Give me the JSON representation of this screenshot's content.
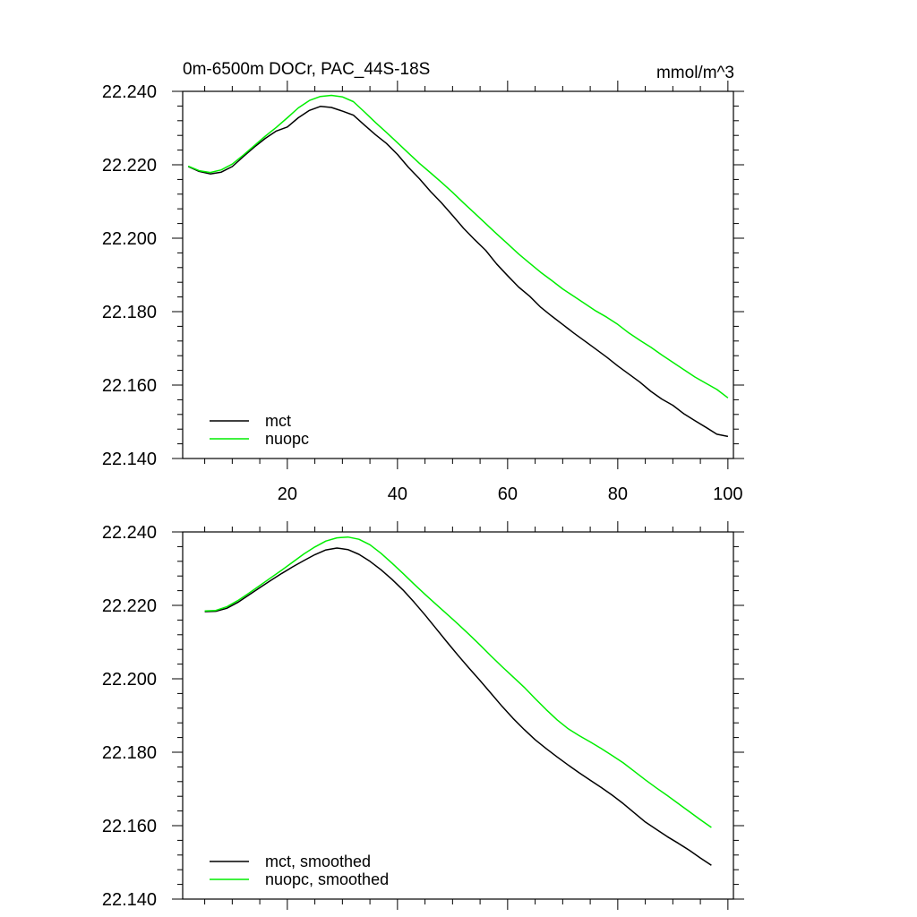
{
  "chart_data": [
    {
      "type": "line",
      "title_left": "0m-6500m DOCr, PAC_44S-18S",
      "title_right": "mmol/m^3",
      "xlim": [
        1,
        101
      ],
      "ylim": [
        22.14,
        22.24
      ],
      "x_ticks": [
        20,
        40,
        60,
        80,
        100
      ],
      "x_tick_labels": [
        "20",
        "40",
        "60",
        "80",
        "100"
      ],
      "y_ticks": [
        22.14,
        22.16,
        22.18,
        22.2,
        22.22,
        22.24
      ],
      "y_tick_labels": [
        "22.140",
        "22.160",
        "22.180",
        "22.200",
        "22.220",
        "22.240"
      ],
      "legend_position": "bottom-left",
      "series": [
        {
          "name": "mct",
          "color": "#000000",
          "x": [
            2,
            4,
            6,
            8,
            10,
            12,
            14,
            16,
            18,
            20,
            22,
            24,
            26,
            28,
            30,
            32,
            34,
            36,
            38,
            40,
            42,
            44,
            46,
            48,
            50,
            52,
            54,
            56,
            58,
            60,
            62,
            64,
            66,
            68,
            70,
            72,
            74,
            76,
            78,
            80,
            82,
            84,
            86,
            88,
            90,
            92,
            94,
            96,
            98,
            100
          ],
          "y": [
            22.2195,
            22.2182,
            22.2175,
            22.218,
            22.2195,
            22.2222,
            22.2248,
            22.2272,
            22.2292,
            22.2303,
            22.2328,
            22.2348,
            22.2359,
            22.2356,
            22.2346,
            22.2335,
            22.2308,
            22.2282,
            22.2258,
            22.2228,
            22.2193,
            22.2162,
            22.2127,
            22.2096,
            22.2062,
            22.2027,
            22.1996,
            22.1967,
            22.193,
            22.1898,
            22.1867,
            22.1842,
            22.1812,
            22.1788,
            22.1765,
            22.1742,
            22.172,
            22.1698,
            22.1676,
            22.1652,
            22.163,
            22.1608,
            22.1583,
            22.1562,
            22.1545,
            22.1522,
            22.1503,
            22.1485,
            22.1466,
            22.146
          ]
        },
        {
          "name": "nuopc",
          "color": "#00ee00",
          "x": [
            2,
            4,
            6,
            8,
            10,
            12,
            14,
            16,
            18,
            20,
            22,
            24,
            26,
            28,
            30,
            32,
            34,
            36,
            38,
            40,
            42,
            44,
            46,
            48,
            50,
            52,
            54,
            56,
            58,
            60,
            62,
            64,
            66,
            68,
            70,
            72,
            74,
            76,
            78,
            80,
            82,
            84,
            86,
            88,
            90,
            92,
            94,
            96,
            98,
            100
          ],
          "y": [
            22.2196,
            22.2184,
            22.2179,
            22.2186,
            22.2202,
            22.2226,
            22.2252,
            22.2278,
            22.2302,
            22.2328,
            22.2355,
            22.2375,
            22.2386,
            22.2389,
            22.2385,
            22.2372,
            22.2344,
            22.2315,
            22.2288,
            22.226,
            22.2232,
            22.2204,
            22.2178,
            22.2152,
            22.2125,
            22.2096,
            22.2068,
            22.204,
            22.2012,
            22.1985,
            22.1957,
            22.1932,
            22.1907,
            22.1885,
            22.1862,
            22.1842,
            22.1822,
            22.1802,
            22.1785,
            22.1765,
            22.1742,
            22.1722,
            22.1703,
            22.1682,
            22.1662,
            22.1642,
            22.1622,
            22.1605,
            22.1588,
            22.1565
          ]
        }
      ]
    },
    {
      "type": "line",
      "xlim": [
        1,
        101
      ],
      "ylim": [
        22.14,
        22.24
      ],
      "x_ticks": [
        20,
        40,
        60,
        80,
        100
      ],
      "y_ticks": [
        22.14,
        22.16,
        22.18,
        22.2,
        22.22,
        22.24
      ],
      "y_tick_labels": [
        "22.140",
        "22.160",
        "22.180",
        "22.200",
        "22.220",
        "22.240"
      ],
      "legend_position": "bottom-left",
      "series": [
        {
          "name": "mct, smoothed",
          "color": "#000000",
          "x": [
            5,
            7,
            9,
            11,
            13,
            15,
            17,
            19,
            21,
            23,
            25,
            27,
            29,
            31,
            33,
            35,
            37,
            39,
            41,
            43,
            45,
            47,
            49,
            51,
            53,
            55,
            57,
            59,
            61,
            63,
            65,
            67,
            69,
            71,
            73,
            75,
            77,
            79,
            81,
            83,
            85,
            87,
            89,
            91,
            93,
            95,
            97
          ],
          "y": [
            22.2183,
            22.2184,
            22.2192,
            22.2208,
            22.2228,
            22.2248,
            22.2268,
            22.2287,
            22.2305,
            22.2322,
            22.2338,
            22.2351,
            22.2356,
            22.2352,
            22.2339,
            22.232,
            22.2297,
            22.2271,
            22.2242,
            22.2209,
            22.2174,
            22.2137,
            22.21,
            22.2064,
            22.2029,
            22.1995,
            22.196,
            22.1925,
            22.1892,
            22.1862,
            22.1834,
            22.181,
            22.1787,
            22.1765,
            22.1744,
            22.1724,
            22.1704,
            22.1683,
            22.166,
            22.1635,
            22.161,
            22.159,
            22.157,
            22.1552,
            22.1533,
            22.1512,
            22.1492
          ]
        },
        {
          "name": "nuopc, smoothed",
          "color": "#00ee00",
          "x": [
            5,
            7,
            9,
            11,
            13,
            15,
            17,
            19,
            21,
            23,
            25,
            27,
            29,
            31,
            33,
            35,
            37,
            39,
            41,
            43,
            45,
            47,
            49,
            51,
            53,
            55,
            57,
            59,
            61,
            63,
            65,
            67,
            69,
            71,
            73,
            75,
            77,
            79,
            81,
            83,
            85,
            87,
            89,
            91,
            93,
            95,
            97
          ],
          "y": [
            22.2185,
            22.2186,
            22.2196,
            22.2213,
            22.2233,
            22.2254,
            22.2275,
            22.2296,
            22.2318,
            22.234,
            22.2359,
            22.2375,
            22.2384,
            22.2386,
            22.238,
            22.2365,
            22.2342,
            22.2315,
            22.2287,
            22.2258,
            22.223,
            22.2203,
            22.2176,
            22.2149,
            22.2121,
            22.2092,
            22.2062,
            22.2033,
            22.2005,
            22.1977,
            22.1946,
            22.1916,
            22.1888,
            22.1864,
            22.1845,
            22.1828,
            22.181,
            22.1791,
            22.1771,
            22.1748,
            22.1725,
            22.1703,
            22.1682,
            22.166,
            22.1638,
            22.1616,
            22.1595
          ]
        }
      ]
    }
  ]
}
